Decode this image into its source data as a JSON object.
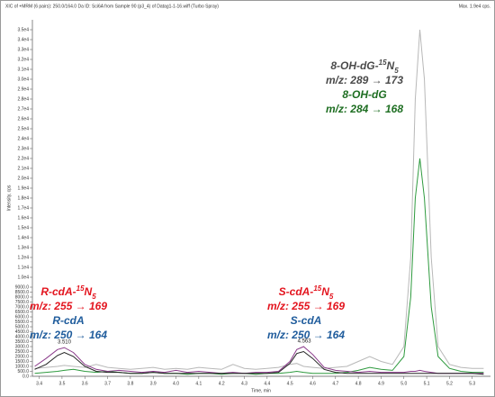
{
  "chart_data": {
    "type": "line",
    "title": "XIC of +MRM (6 pairs): 250.0/164.0 Da ID: Sci6A from Sample 90 (p3_4) of Datag1-1-16.wiff (Turbo Spray)",
    "subtitle": "Max. 1.9e4 cps.",
    "x_label": "Time, min",
    "y_label": "Intensity, cps",
    "xlim": [
      3.37,
      5.38
    ],
    "xticks": [
      3.4,
      3.5,
      3.6,
      3.7,
      3.8,
      3.9,
      {
        "value": 4,
        "label": "4.0"
      },
      4.1,
      4.2,
      4.3,
      4.4,
      4.5,
      4.6,
      4.7,
      4.8,
      4.9,
      {
        "value": 5,
        "label": "5.0"
      },
      5.1,
      5.2,
      5.3
    ],
    "ylim": [
      0,
      36000
    ],
    "yticks": [
      {
        "value": 0,
        "label": "0.0"
      },
      {
        "value": 500,
        "label": "500.0"
      },
      {
        "value": 1000,
        "label": "1000.0"
      },
      {
        "value": 1500,
        "label": "1500.0"
      },
      {
        "value": 2000,
        "label": "2000.0"
      },
      {
        "value": 2500,
        "label": "2500.0"
      },
      {
        "value": 3000,
        "label": "3000.0"
      },
      {
        "value": 3500,
        "label": "3500.0"
      },
      {
        "value": 4000,
        "label": "4000.0"
      },
      {
        "value": 4500,
        "label": "4500.0"
      },
      {
        "value": 5000,
        "label": "5000.0"
      },
      {
        "value": 5500,
        "label": "5500.0"
      },
      {
        "value": 6000,
        "label": "6000.0"
      },
      {
        "value": 6500,
        "label": "6500.0"
      },
      {
        "value": 7000,
        "label": "7000.0"
      },
      {
        "value": 7500,
        "label": "7500.0"
      },
      {
        "value": 8000,
        "label": "8000.0"
      },
      {
        "value": 8500,
        "label": "8500.0"
      },
      {
        "value": 9000,
        "label": "9000.0"
      },
      {
        "value": 10000,
        "label": "1.0e4"
      },
      {
        "value": 11000,
        "label": "1.1e4"
      },
      {
        "value": 12000,
        "label": "1.2e4"
      },
      {
        "value": 13000,
        "label": "1.3e4"
      },
      {
        "value": 14000,
        "label": "1.4e4"
      },
      {
        "value": 15000,
        "label": "1.5e4"
      },
      {
        "value": 16000,
        "label": "1.6e4"
      },
      {
        "value": 17000,
        "label": "1.7e4"
      },
      {
        "value": 18000,
        "label": "1.8e4"
      },
      {
        "value": 19000,
        "label": "1.9e4"
      },
      {
        "value": 20000,
        "label": "2.0e4"
      },
      {
        "value": 21000,
        "label": "2.1e4"
      },
      {
        "value": 22000,
        "label": "2.2e4"
      },
      {
        "value": 23000,
        "label": "2.3e4"
      },
      {
        "value": 24000,
        "label": "2.4e4"
      },
      {
        "value": 25000,
        "label": "2.5e4"
      },
      {
        "value": 26000,
        "label": "2.6e4"
      },
      {
        "value": 27000,
        "label": "2.7e4"
      },
      {
        "value": 28000,
        "label": "2.8e4"
      },
      {
        "value": 29000,
        "label": "2.9e4"
      },
      {
        "value": 30000,
        "label": "3.0e4"
      },
      {
        "value": 31000,
        "label": "3.1e4"
      },
      {
        "value": 32000,
        "label": "3.2e4"
      },
      {
        "value": 33000,
        "label": "3.3e4"
      },
      {
        "value": 34000,
        "label": "3.4e4"
      },
      {
        "value": 35000,
        "label": "3.5e4"
      }
    ],
    "x": [
      3.38,
      3.43,
      3.48,
      3.51,
      3.55,
      3.6,
      3.65,
      3.7,
      3.75,
      3.8,
      3.85,
      3.9,
      3.95,
      4.0,
      4.05,
      4.1,
      4.15,
      4.2,
      4.25,
      4.3,
      4.35,
      4.4,
      4.45,
      4.5,
      4.53,
      4.56,
      4.6,
      4.65,
      4.7,
      4.75,
      4.8,
      4.85,
      4.9,
      4.95,
      5.0,
      5.03,
      5.05,
      5.07,
      5.09,
      5.12,
      5.15,
      5.2,
      5.25,
      5.3,
      5.35
    ],
    "series": [
      {
        "color": "#b8b8b8",
        "values": [
          800,
          900,
          1000,
          1100,
          1000,
          900,
          1200,
          900,
          800,
          700,
          800,
          900,
          700,
          800,
          700,
          900,
          800,
          700,
          1200,
          800,
          700,
          800,
          900,
          1200,
          1300,
          1000,
          900,
          800,
          900,
          1000,
          1500,
          2000,
          1500,
          1200,
          3000,
          12000,
          28000,
          35000,
          30000,
          12000,
          3000,
          1200,
          900,
          800,
          800
        ]
      },
      {
        "color": "#2e9a3e",
        "values": [
          300,
          400,
          500,
          600,
          700,
          500,
          400,
          500,
          400,
          300,
          300,
          400,
          300,
          300,
          200,
          300,
          300,
          200,
          300,
          300,
          200,
          300,
          300,
          400,
          500,
          400,
          300,
          300,
          300,
          400,
          600,
          900,
          700,
          600,
          2000,
          8000,
          18000,
          22000,
          18000,
          7000,
          2000,
          800,
          500,
          400,
          400
        ]
      },
      {
        "color": "#8a3a8a",
        "values": [
          1000,
          1800,
          2700,
          2900,
          2400,
          1200,
          700,
          500,
          600,
          500,
          400,
          500,
          400,
          600,
          400,
          500,
          400,
          300,
          400,
          300,
          400,
          400,
          500,
          1500,
          2700,
          3000,
          2200,
          900,
          600,
          500,
          400,
          500,
          400,
          400,
          400,
          500,
          500,
          600,
          500,
          400,
          300,
          300,
          300,
          300,
          300
        ]
      },
      {
        "color": "#222222",
        "values": [
          700,
          1200,
          2100,
          2400,
          2000,
          1000,
          500,
          400,
          400,
          300,
          300,
          400,
          300,
          300,
          300,
          300,
          300,
          300,
          300,
          300,
          300,
          300,
          400,
          1300,
          2300,
          2500,
          1800,
          700,
          400,
          300,
          300,
          300,
          300,
          300,
          300,
          300,
          300,
          300,
          300,
          300,
          300,
          300,
          300,
          300,
          200
        ]
      }
    ],
    "peak_labels": [
      {
        "value": 3.51,
        "label": "3.510"
      },
      {
        "value": 4.563,
        "label": "4.563"
      }
    ],
    "annotations": [
      {
        "color": "#4a4a4a",
        "lines": [
          {
            "name": "8-OH-dG-",
            "sup": "15",
            "element": "N",
            "sub": "5"
          },
          {
            "text": "m/z: 289 → 173"
          }
        ]
      },
      {
        "color": "#1e6e22",
        "lines": [
          {
            "text": "8-OH-dG"
          },
          {
            "text": "m/z: 284 → 168"
          }
        ]
      },
      {
        "color": "#e3141e",
        "lines": [
          {
            "name": "R-cdA-",
            "sup": "15",
            "element": "N",
            "sub": "5"
          },
          {
            "text": "m/z: 255 → 169"
          }
        ]
      },
      {
        "color": "#1f5c9c",
        "lines": [
          {
            "text": "R-cdA"
          },
          {
            "text": "m/z: 250 → 164"
          }
        ]
      },
      {
        "color": "#e3141e",
        "lines": [
          {
            "name": "S-cdA-",
            "sup": "15",
            "element": "N",
            "sub": "5"
          },
          {
            "text": "m/z: 255 → 169"
          }
        ]
      },
      {
        "color": "#1f5c9c",
        "lines": [
          {
            "text": "S-cdA"
          },
          {
            "text": "m/z: 250 → 164"
          }
        ]
      }
    ]
  }
}
